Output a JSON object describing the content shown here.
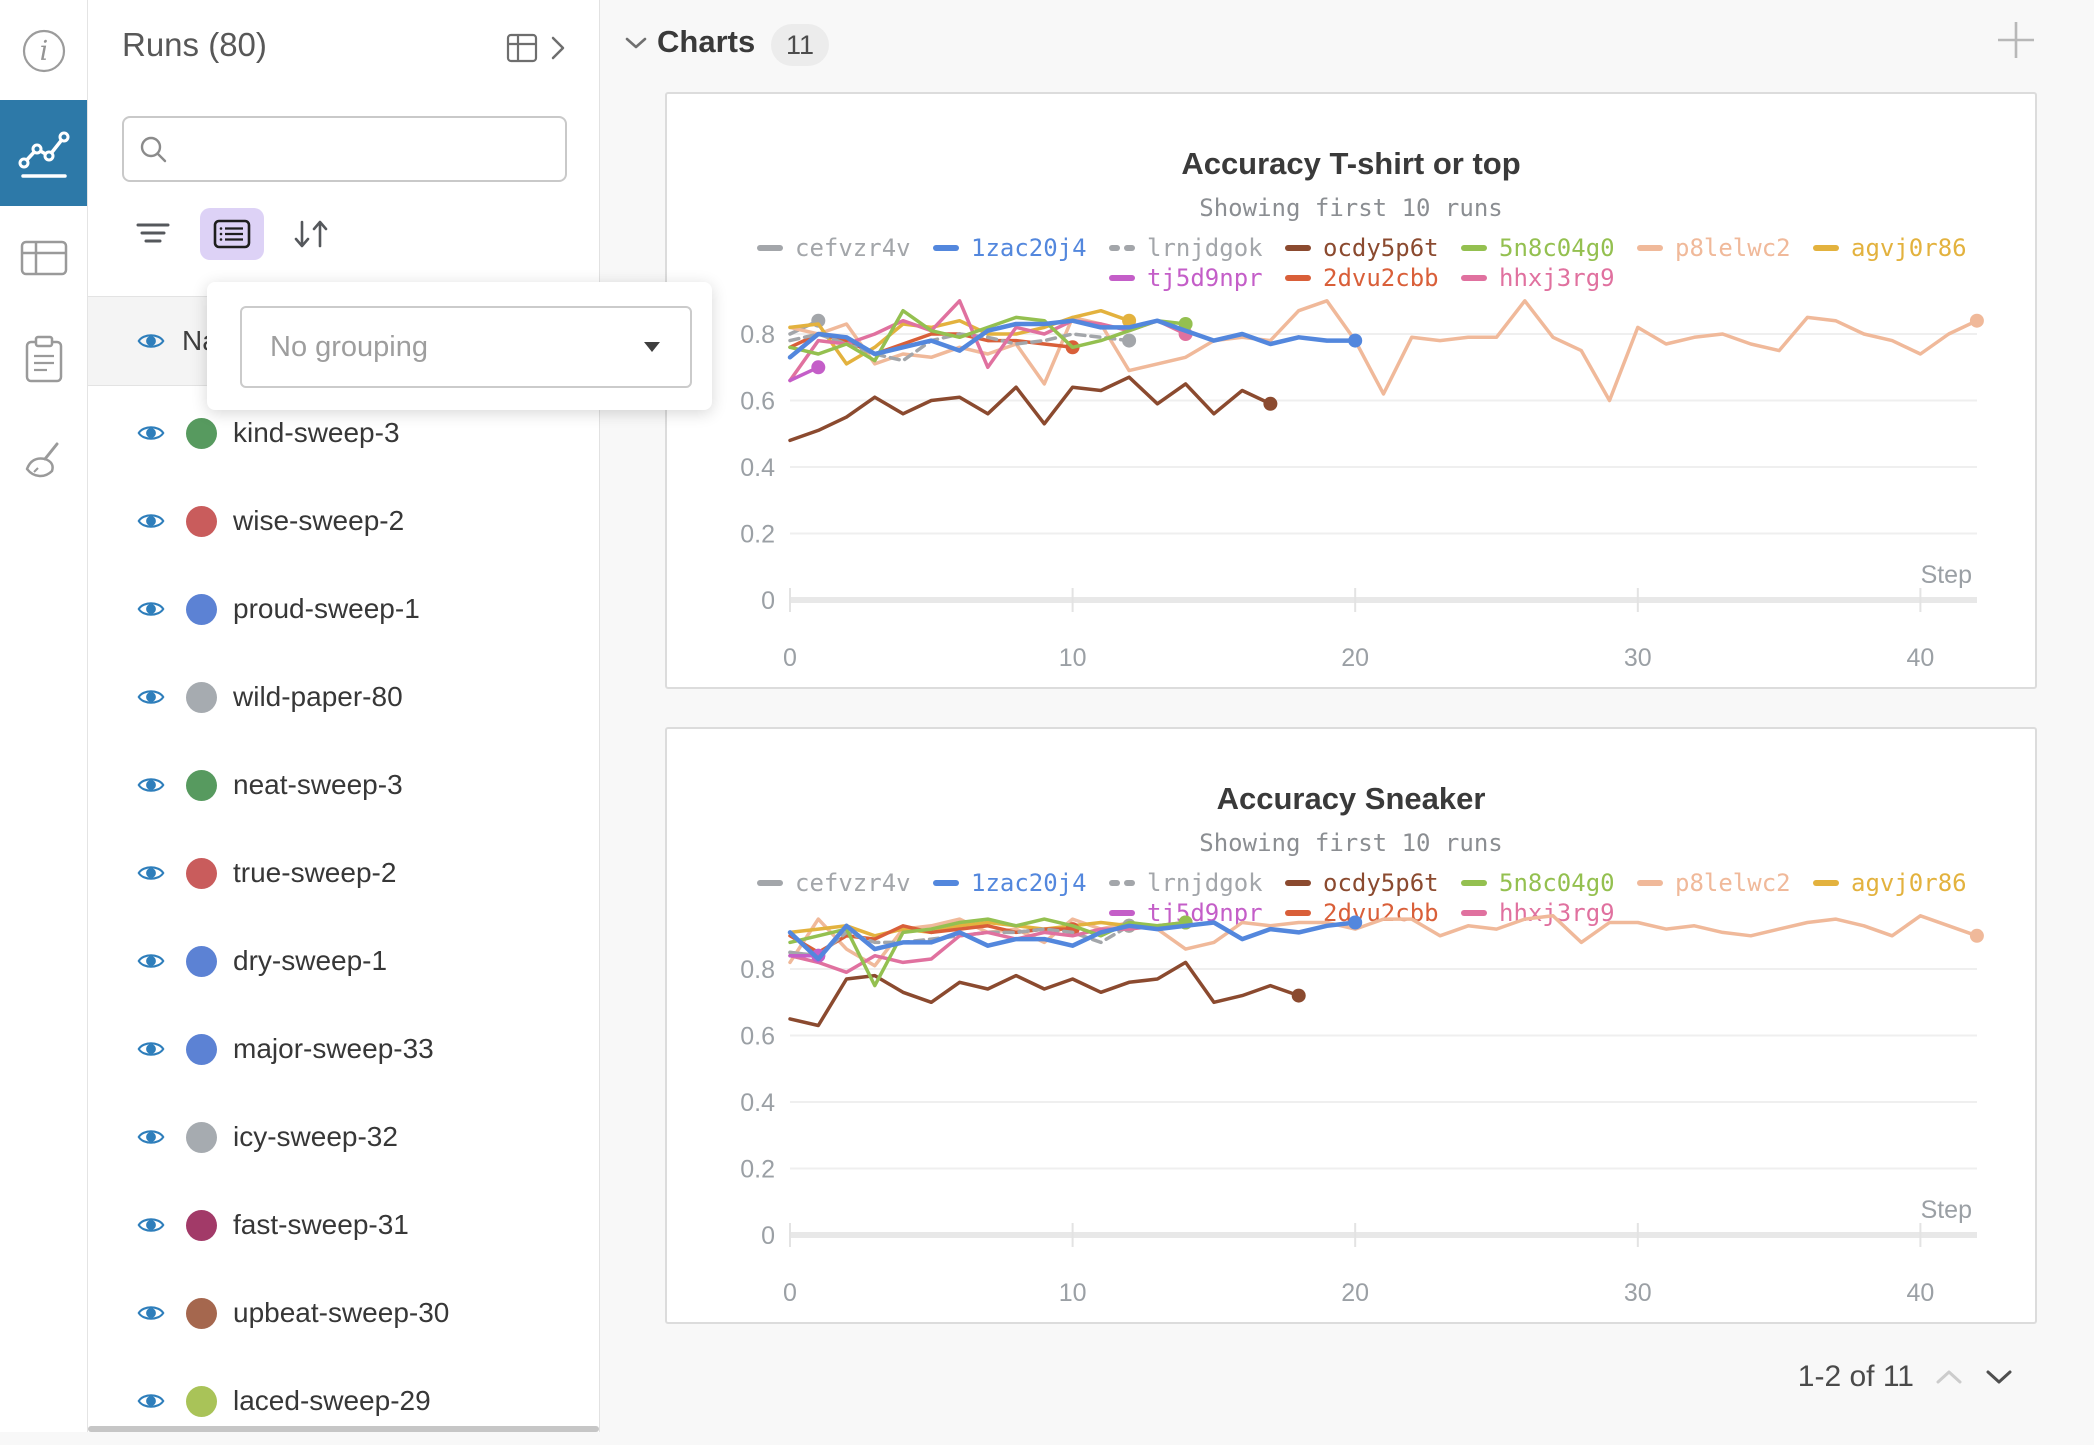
{
  "iconbar": {
    "icons": [
      "info-icon",
      "panels-chart-icon",
      "table-icon",
      "notes-icon",
      "sweep-broom-icon"
    ],
    "active_color": "#2d79a8"
  },
  "runs_panel": {
    "title": "Runs (80)",
    "search": {
      "placeholder": ""
    },
    "toolbar_icons": [
      "filter-icon",
      "group-list-icon",
      "sort-arrows-icon"
    ],
    "grouping_popup": {
      "selected": "No grouping"
    },
    "name_column_partial": "Na",
    "eye_color": "#2e7ebb",
    "runs": [
      {
        "name": "kind-sweep-3",
        "color": "#579a5f"
      },
      {
        "name": "wise-sweep-2",
        "color": "#c95c5c"
      },
      {
        "name": "proud-sweep-1",
        "color": "#5c82d4"
      },
      {
        "name": "wild-paper-80",
        "color": "#a6abb0"
      },
      {
        "name": "neat-sweep-3",
        "color": "#579a5f"
      },
      {
        "name": "true-sweep-2",
        "color": "#c95c5c"
      },
      {
        "name": "dry-sweep-1",
        "color": "#5c82d4"
      },
      {
        "name": "major-sweep-33",
        "color": "#5c82d4"
      },
      {
        "name": "icy-sweep-32",
        "color": "#a6abb0"
      },
      {
        "name": "fast-sweep-31",
        "color": "#a23a68"
      },
      {
        "name": "upbeat-sweep-30",
        "color": "#a5674e"
      },
      {
        "name": "laced-sweep-29",
        "color": "#a9c358"
      }
    ]
  },
  "main": {
    "section_label": "Charts",
    "section_count": "11",
    "pagination": "1-2 of 11"
  },
  "chart_data": [
    {
      "type": "line",
      "title": "Accuracy T-shirt or top",
      "subtitle": "Showing first 10 runs",
      "xlabel": "Step",
      "ylim": [
        0,
        1
      ],
      "yticks": [
        0,
        0.2,
        0.4,
        0.6,
        0.8
      ],
      "xticks": [
        0,
        10,
        20,
        30,
        40
      ],
      "xmax": 42,
      "grid": true,
      "legend_rows": [
        7,
        3
      ],
      "series": [
        {
          "name": "cefvzr4v",
          "color": "#a3a6aa",
          "values": [
            0.8,
            0.84
          ]
        },
        {
          "name": "1zac20j4",
          "color": "#5387dd",
          "width": 4.5,
          "values": [
            0.73,
            0.8,
            0.79,
            0.74,
            0.76,
            0.78,
            0.75,
            0.81,
            0.83,
            0.83,
            0.84,
            0.82,
            0.82,
            0.84,
            0.81,
            0.78,
            0.8,
            0.77,
            0.79,
            0.78,
            0.78
          ]
        },
        {
          "name": "lrnjdgok",
          "color": "#a3a6aa",
          "dash": true,
          "values": [
            0.78,
            0.8,
            0.77,
            0.74,
            0.72,
            0.78,
            0.8,
            0.79,
            0.77,
            0.78,
            0.8,
            0.79,
            0.78
          ]
        },
        {
          "name": "ocdy5p6t",
          "color": "#8b4a2f",
          "values": [
            0.48,
            0.51,
            0.55,
            0.61,
            0.56,
            0.6,
            0.61,
            0.56,
            0.64,
            0.53,
            0.64,
            0.63,
            0.67,
            0.59,
            0.65,
            0.56,
            0.63,
            0.59
          ]
        },
        {
          "name": "5n8c04g0",
          "color": "#94c050",
          "values": [
            0.76,
            0.74,
            0.77,
            0.72,
            0.87,
            0.81,
            0.79,
            0.82,
            0.85,
            0.84,
            0.76,
            0.78,
            0.81,
            0.84,
            0.83
          ]
        },
        {
          "name": "p8lelwc2",
          "color": "#f0b99a",
          "values": [
            0.82,
            0.8,
            0.83,
            0.71,
            0.74,
            0.73,
            0.76,
            0.74,
            0.77,
            0.65,
            0.85,
            0.83,
            0.69,
            0.71,
            0.73,
            0.78,
            0.79,
            0.78,
            0.87,
            0.9,
            0.78,
            0.62,
            0.79,
            0.78,
            0.79,
            0.79,
            0.9,
            0.79,
            0.75,
            0.6,
            0.82,
            0.77,
            0.79,
            0.8,
            0.77,
            0.75,
            0.85,
            0.84,
            0.8,
            0.78,
            0.74,
            0.8,
            0.84
          ]
        },
        {
          "name": "agvj0r86",
          "color": "#e3b23e",
          "values": [
            0.82,
            0.83,
            0.71,
            0.76,
            0.83,
            0.82,
            0.84,
            0.8,
            0.8,
            0.82,
            0.85,
            0.87,
            0.84
          ]
        },
        {
          "name": "tj5d9npr",
          "color": "#c45ec8",
          "values": [
            0.66,
            0.7
          ]
        },
        {
          "name": "2dvu2cbb",
          "color": "#d95f39",
          "values": [
            0.76,
            0.8,
            0.78,
            0.74,
            0.77,
            0.8,
            0.8,
            0.78,
            0.78,
            0.77,
            0.76
          ]
        },
        {
          "name": "hhxj3rg9",
          "color": "#e0719f",
          "values": [
            0.66,
            0.78,
            0.77,
            0.8,
            0.84,
            0.81,
            0.9,
            0.7,
            0.82,
            0.8,
            0.84,
            0.83,
            0.81,
            0.84,
            0.8
          ]
        }
      ]
    },
    {
      "type": "line",
      "title": "Accuracy Sneaker",
      "subtitle": "Showing first 10 runs",
      "xlabel": "Step",
      "ylim": [
        0,
        1
      ],
      "yticks": [
        0,
        0.2,
        0.4,
        0.6,
        0.8
      ],
      "xticks": [
        0,
        10,
        20,
        30,
        40
      ],
      "xmax": 42,
      "grid": true,
      "legend_rows": [
        7,
        3
      ],
      "series": [
        {
          "name": "cefvzr4v",
          "color": "#a3a6aa",
          "values": [
            0.85,
            0.84
          ]
        },
        {
          "name": "1zac20j4",
          "color": "#5387dd",
          "width": 4.5,
          "values": [
            0.91,
            0.83,
            0.93,
            0.86,
            0.88,
            0.88,
            0.91,
            0.87,
            0.89,
            0.89,
            0.87,
            0.91,
            0.93,
            0.92,
            0.93,
            0.94,
            0.89,
            0.92,
            0.91,
            0.93,
            0.94
          ]
        },
        {
          "name": "lrnjdgok",
          "color": "#a3a6aa",
          "dash": true,
          "values": [
            0.85,
            0.84,
            0.91,
            0.88,
            0.88,
            0.89,
            0.9,
            0.91,
            0.91,
            0.92,
            0.91,
            0.88,
            0.93
          ]
        },
        {
          "name": "ocdy5p6t",
          "color": "#8b4a2f",
          "values": [
            0.65,
            0.63,
            0.77,
            0.78,
            0.73,
            0.7,
            0.76,
            0.74,
            0.78,
            0.74,
            0.77,
            0.73,
            0.76,
            0.77,
            0.82,
            0.7,
            0.72,
            0.75,
            0.72
          ]
        },
        {
          "name": "5n8c04g0",
          "color": "#94c050",
          "values": [
            0.88,
            0.9,
            0.92,
            0.75,
            0.91,
            0.92,
            0.94,
            0.95,
            0.93,
            0.95,
            0.93,
            0.9,
            0.94,
            0.93,
            0.94
          ]
        },
        {
          "name": "p8lelwc2",
          "color": "#f0b99a",
          "values": [
            0.82,
            0.95,
            0.86,
            0.81,
            0.92,
            0.93,
            0.95,
            0.91,
            0.92,
            0.88,
            0.95,
            0.92,
            0.94,
            0.92,
            0.86,
            0.88,
            0.94,
            0.93,
            0.94,
            0.94,
            0.92,
            0.95,
            0.95,
            0.9,
            0.93,
            0.92,
            0.95,
            0.96,
            0.88,
            0.94,
            0.94,
            0.92,
            0.93,
            0.91,
            0.9,
            0.92,
            0.94,
            0.95,
            0.93,
            0.9,
            0.96,
            0.93,
            0.9
          ]
        },
        {
          "name": "agvj0r86",
          "color": "#e3b23e",
          "values": [
            0.91,
            0.92,
            0.93,
            0.9,
            0.92,
            0.91,
            0.93,
            0.94,
            0.93,
            0.92,
            0.93,
            0.94,
            0.93
          ]
        },
        {
          "name": "tj5d9npr",
          "color": "#c45ec8",
          "values": [
            0.84,
            0.84
          ]
        },
        {
          "name": "2dvu2cbb",
          "color": "#d95f39",
          "values": [
            0.9,
            0.85,
            0.9,
            0.89,
            0.93,
            0.91,
            0.92,
            0.93,
            0.91,
            0.92,
            0.92
          ]
        },
        {
          "name": "hhxj3rg9",
          "color": "#e0719f",
          "values": [
            0.84,
            0.82,
            0.79,
            0.84,
            0.82,
            0.83,
            0.9,
            0.91,
            0.89,
            0.91,
            0.9,
            0.92,
            0.92,
            0.93,
            0.94
          ]
        }
      ]
    }
  ]
}
